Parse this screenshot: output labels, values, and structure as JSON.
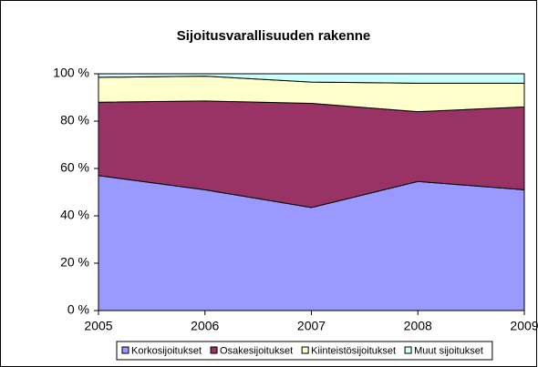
{
  "chart_data": {
    "type": "stacked_area",
    "title": "Sijoitusvarallisuuden rakenne",
    "categories": [
      "2005",
      "2006",
      "2007",
      "2008",
      "2009"
    ],
    "series": [
      {
        "name": "Korkosijoitukset",
        "color": "#9999ff",
        "values": [
          57,
          51,
          43.5,
          54.5,
          51
        ]
      },
      {
        "name": "Osakesijoitukset",
        "color": "#993366",
        "values": [
          31,
          37.5,
          44,
          29.5,
          35
        ]
      },
      {
        "name": "Kiinteistösijoitukset",
        "color": "#ffffcc",
        "values": [
          10.5,
          10.5,
          9,
          12,
          10
        ]
      },
      {
        "name": "Muut sijoitukset",
        "color": "#ccffff",
        "values": [
          1.5,
          1,
          3.5,
          4,
          4
        ]
      }
    ],
    "ylim": [
      0,
      100
    ],
    "yticks": [
      {
        "value": 0,
        "label": "0 %"
      },
      {
        "value": 20,
        "label": "20 %"
      },
      {
        "value": 40,
        "label": "40 %"
      },
      {
        "value": 60,
        "label": "60 %"
      },
      {
        "value": 80,
        "label": "80 %"
      },
      {
        "value": 100,
        "label": "100 %"
      }
    ],
    "grid": false,
    "legend": "bottom"
  }
}
